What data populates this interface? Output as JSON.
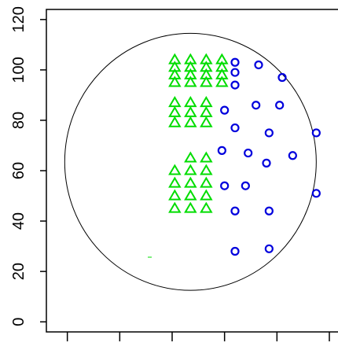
{
  "chart_data": {
    "type": "scatter",
    "title": "",
    "xlabel": "",
    "ylabel": "",
    "xlim": [
      -8,
      112
    ],
    "ylim": [
      -4,
      124
    ],
    "yticks": [
      0,
      20,
      40,
      60,
      80,
      100,
      120
    ],
    "ytick_labels": [
      "0",
      "20",
      "40",
      "60",
      "80",
      "100",
      "120"
    ],
    "xticks": [
      0,
      20,
      40,
      60,
      80,
      100
    ],
    "grid": false,
    "legend": "none",
    "circle": {
      "cx": 47,
      "cy": 63.5,
      "rx": 48,
      "ry": 51
    },
    "series": [
      {
        "marker": "triangle",
        "color": "#00dd00",
        "points": [
          [
            41,
            104
          ],
          [
            47,
            104
          ],
          [
            53,
            104
          ],
          [
            59,
            104
          ],
          [
            41,
            101
          ],
          [
            47,
            101
          ],
          [
            53,
            101
          ],
          [
            59,
            101
          ],
          [
            41,
            98
          ],
          [
            47,
            98
          ],
          [
            53,
            98
          ],
          [
            59,
            98
          ],
          [
            41,
            95
          ],
          [
            47,
            95
          ],
          [
            53,
            95
          ],
          [
            59,
            95
          ],
          [
            41,
            87
          ],
          [
            47,
            87
          ],
          [
            53,
            87
          ],
          [
            41,
            83
          ],
          [
            47,
            83
          ],
          [
            53,
            83
          ],
          [
            41,
            79
          ],
          [
            47,
            79
          ],
          [
            53,
            79
          ],
          [
            47,
            65
          ],
          [
            53,
            65
          ],
          [
            41,
            60
          ],
          [
            47,
            60
          ],
          [
            53,
            60
          ],
          [
            41,
            55
          ],
          [
            47,
            55
          ],
          [
            53,
            55
          ],
          [
            41,
            50
          ],
          [
            47,
            50
          ],
          [
            53,
            50
          ],
          [
            41,
            45
          ],
          [
            47,
            45
          ],
          [
            53,
            45
          ]
        ]
      },
      {
        "marker": "circle",
        "color": "#0000dd",
        "points": [
          [
            64,
            103
          ],
          [
            73,
            102
          ],
          [
            64,
            99
          ],
          [
            82,
            97
          ],
          [
            64,
            94
          ],
          [
            60,
            84
          ],
          [
            72,
            86
          ],
          [
            81,
            86
          ],
          [
            64,
            77
          ],
          [
            77,
            75
          ],
          [
            95,
            75
          ],
          [
            59,
            68
          ],
          [
            69,
            67
          ],
          [
            76,
            63
          ],
          [
            86,
            66
          ],
          [
            60,
            54
          ],
          [
            68,
            54
          ],
          [
            95,
            51
          ],
          [
            64,
            44
          ],
          [
            77,
            44
          ],
          [
            64,
            28
          ],
          [
            77,
            29
          ]
        ]
      }
    ]
  }
}
